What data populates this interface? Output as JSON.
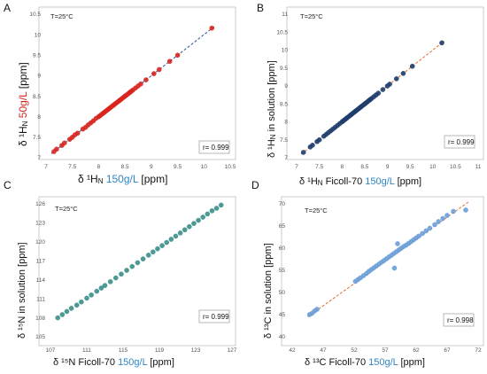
{
  "colors": {
    "red": "#d7261e",
    "blue": "#2e86c8",
    "navy": "#1f3d6b",
    "teal": "#3a8f8a",
    "lightblue": "#6a9fd8",
    "dashed_blue": "#2d4fa0",
    "dashed_orange": "#e8692a"
  },
  "chart_data": [
    {
      "type": "scatter",
      "panel_letter": "A",
      "annotation": "T=25°C",
      "r_label": "r= 0.999",
      "xlim": [
        7,
        10.5
      ],
      "ylim": [
        7,
        10.5
      ],
      "xticks": [
        "7",
        "7.5",
        "8",
        "8.5",
        "9",
        "9.5",
        "10",
        "10.5"
      ],
      "yticks": [
        "7",
        "7.5",
        "8",
        "8.5",
        "9",
        "9.5",
        "10",
        "10.5"
      ],
      "xlabel": {
        "pre": "δ ¹H",
        "sub": "N",
        "colored": "150g/L",
        "post": "[ppm]"
      },
      "ylabel": {
        "pre": "δ ¹H",
        "sub": "N",
        "colored": "50g/L",
        "post": "[ppm]"
      },
      "trend": {
        "x": [
          7.1,
          10.2
        ],
        "y": [
          7.1,
          10.2
        ],
        "style": "dashed"
      },
      "x": [
        7.15,
        7.2,
        7.3,
        7.35,
        7.45,
        7.5,
        7.55,
        7.6,
        7.7,
        7.75,
        7.8,
        7.85,
        7.9,
        7.95,
        8.0,
        8.02,
        8.05,
        8.08,
        8.1,
        8.12,
        8.15,
        8.18,
        8.2,
        8.22,
        8.25,
        8.28,
        8.3,
        8.32,
        8.35,
        8.38,
        8.4,
        8.42,
        8.45,
        8.48,
        8.5,
        8.52,
        8.55,
        8.58,
        8.6,
        8.62,
        8.65,
        8.7,
        8.75,
        8.8,
        8.9,
        9.05,
        9.15,
        9.35,
        9.5,
        10.15
      ],
      "y": [
        7.15,
        7.21,
        7.3,
        7.36,
        7.45,
        7.5,
        7.56,
        7.6,
        7.7,
        7.74,
        7.8,
        7.85,
        7.9,
        7.96,
        8.0,
        8.02,
        8.05,
        8.08,
        8.1,
        8.12,
        8.15,
        8.18,
        8.2,
        8.22,
        8.25,
        8.28,
        8.3,
        8.32,
        8.35,
        8.38,
        8.4,
        8.42,
        8.45,
        8.48,
        8.5,
        8.52,
        8.55,
        8.58,
        8.6,
        8.62,
        8.65,
        8.7,
        8.75,
        8.8,
        8.9,
        9.05,
        9.15,
        9.35,
        9.5,
        10.16
      ]
    },
    {
      "type": "scatter",
      "panel_letter": "B",
      "annotation": "T=25°C",
      "r_label": "r= 0.999",
      "xlim": [
        7,
        11
      ],
      "ylim": [
        7,
        11
      ],
      "xticks": [
        "7",
        "7.5",
        "8",
        "8.5",
        "9",
        "9.5",
        "10",
        "10.5",
        "11"
      ],
      "yticks": [
        "7",
        "7.5",
        "8",
        "8.5",
        "9",
        "9.5",
        "10",
        "10.5",
        "11"
      ],
      "xlabel": {
        "pre": "δ ¹H",
        "sub": "N",
        "mid": "Ficoll-70",
        "colored": "150g/L",
        "post": "[ppm]"
      },
      "ylabel": {
        "pre": "δ ¹H",
        "sub": "N",
        "mid": "in solution",
        "post": "[ppm]"
      },
      "trend": {
        "x": [
          7.1,
          10.25
        ],
        "y": [
          7.1,
          10.25
        ],
        "style": "dashed"
      },
      "x": [
        7.15,
        7.3,
        7.35,
        7.45,
        7.5,
        7.6,
        7.65,
        7.7,
        7.75,
        7.8,
        7.85,
        7.9,
        7.95,
        8.0,
        8.02,
        8.05,
        8.08,
        8.1,
        8.12,
        8.15,
        8.18,
        8.2,
        8.22,
        8.25,
        8.28,
        8.3,
        8.32,
        8.35,
        8.38,
        8.4,
        8.42,
        8.45,
        8.48,
        8.5,
        8.52,
        8.55,
        8.58,
        8.6,
        8.62,
        8.65,
        8.7,
        8.75,
        8.8,
        8.9,
        9.0,
        9.05,
        9.2,
        9.35,
        9.55,
        10.2
      ],
      "y": [
        7.15,
        7.3,
        7.35,
        7.45,
        7.5,
        7.6,
        7.65,
        7.7,
        7.75,
        7.8,
        7.85,
        7.9,
        7.95,
        8.0,
        8.02,
        8.05,
        8.08,
        8.1,
        8.12,
        8.15,
        8.18,
        8.2,
        8.22,
        8.25,
        8.28,
        8.3,
        8.32,
        8.35,
        8.38,
        8.4,
        8.42,
        8.45,
        8.48,
        8.5,
        8.52,
        8.55,
        8.58,
        8.6,
        8.62,
        8.65,
        8.7,
        8.75,
        8.8,
        8.9,
        9.0,
        9.05,
        9.2,
        9.35,
        9.55,
        10.2
      ]
    },
    {
      "type": "scatter",
      "panel_letter": "C",
      "annotation": "T=25°C",
      "r_label": "r= 0.999",
      "xlim": [
        107,
        127
      ],
      "ylim": [
        105,
        126
      ],
      "xticks": [
        "107",
        "111",
        "115",
        "119",
        "123",
        "127"
      ],
      "xtick_values": [
        107,
        111,
        115,
        119,
        123,
        127
      ],
      "yticks": [
        "105",
        "108",
        "111",
        "114",
        "117",
        "120",
        "123",
        "126"
      ],
      "ytick_values": [
        105,
        108,
        111,
        114,
        117,
        120,
        123,
        126
      ],
      "xlabel": {
        "pre": "δ ¹⁵N",
        "mid": "Ficoll-70",
        "colored": "150g/L",
        "post": "[ppm]"
      },
      "ylabel": {
        "pre": "δ ¹⁵N",
        "mid": "in solution",
        "post": "[ppm]"
      },
      "x": [
        107.8,
        108.3,
        108.8,
        109.3,
        109.9,
        110.4,
        111.0,
        111.5,
        112.1,
        112.6,
        113.0,
        113.6,
        114.2,
        114.8,
        115.4,
        116.0,
        116.6,
        117.2,
        117.8,
        118.3,
        118.8,
        119.3,
        119.8,
        120.3,
        120.8,
        121.3,
        121.8,
        122.3,
        122.8,
        123.3,
        123.8,
        124.3,
        124.8,
        125.3,
        125.8
      ],
      "y": [
        108.0,
        108.5,
        109.0,
        109.5,
        110.0,
        110.5,
        111.1,
        111.6,
        112.2,
        112.7,
        113.1,
        113.7,
        114.3,
        114.9,
        115.5,
        116.1,
        116.7,
        117.3,
        117.9,
        118.4,
        118.9,
        119.4,
        119.9,
        120.4,
        120.9,
        121.4,
        121.9,
        122.4,
        122.9,
        123.4,
        123.9,
        124.4,
        124.9,
        125.3,
        125.8
      ]
    },
    {
      "type": "scatter",
      "panel_letter": "D",
      "annotation": "T=25°C",
      "r_label": "r= 0.998",
      "xlim": [
        42,
        72
      ],
      "ylim": [
        40,
        70
      ],
      "xticks": [
        "42",
        "47",
        "52",
        "57",
        "62",
        "67",
        "72"
      ],
      "xtick_values": [
        42,
        47,
        52,
        57,
        62,
        67,
        72
      ],
      "yticks": [
        "40",
        "45",
        "50",
        "55",
        "60",
        "65",
        "70"
      ],
      "ytick_values": [
        40,
        45,
        50,
        55,
        60,
        65,
        70
      ],
      "xlabel": {
        "pre": "δ ¹³C",
        "mid": "Ficoll-70",
        "colored": "150g/L",
        "post": "[ppm]"
      },
      "ylabel": {
        "pre": "δ ¹³C",
        "mid": "in solution",
        "post": "[ppm]"
      },
      "trend": {
        "x": [
          44.5,
          70.5
        ],
        "y": [
          44.5,
          70.5
        ],
        "style": "dashed"
      },
      "x": [
        44.8,
        45.2,
        45.6,
        46.0,
        52.2,
        52.6,
        53.0,
        53.5,
        54.0,
        54.4,
        54.8,
        55.2,
        55.6,
        56.0,
        56.4,
        56.8,
        57.2,
        57.6,
        58.0,
        58.4,
        58.8,
        59.2,
        59.6,
        60.0,
        60.4,
        60.8,
        61.2,
        61.6,
        62.0,
        62.4,
        63.0,
        63.6,
        64.2,
        65.0,
        65.6,
        66.3,
        67.0,
        68.0,
        70.0,
        59.0,
        58.5
      ],
      "y": [
        45.0,
        45.3,
        45.8,
        46.2,
        52.5,
        52.9,
        53.3,
        53.8,
        54.3,
        54.8,
        55.2,
        55.6,
        56.0,
        56.4,
        56.8,
        57.2,
        57.6,
        58.0,
        58.4,
        58.8,
        59.2,
        59.6,
        60.0,
        60.4,
        60.7,
        61.1,
        61.5,
        61.9,
        62.3,
        62.7,
        63.3,
        63.9,
        64.5,
        65.3,
        66.0,
        66.7,
        67.4,
        68.3,
        68.6,
        61.0,
        55.5
      ]
    }
  ]
}
